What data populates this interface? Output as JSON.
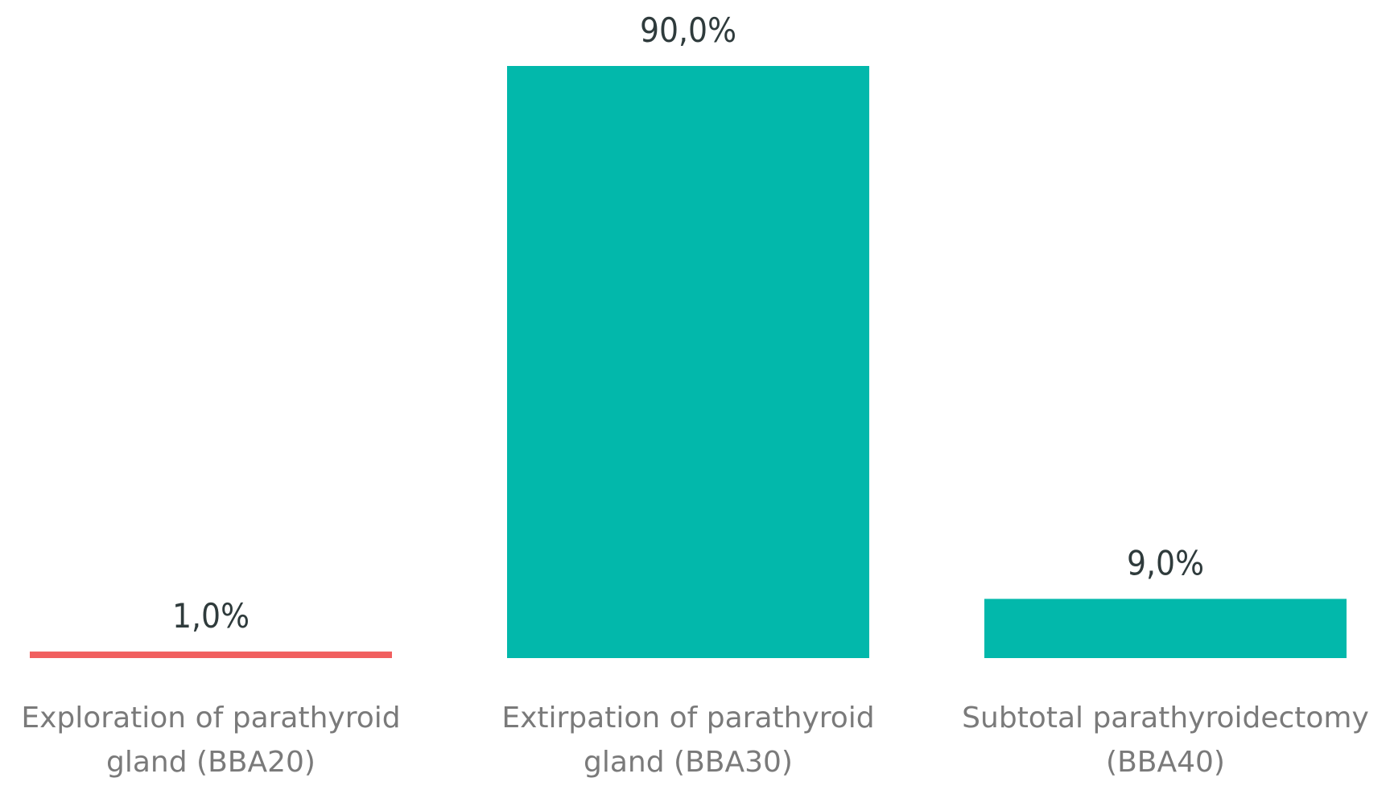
{
  "chart_data": {
    "type": "bar",
    "categories": [
      [
        "Exploration of parathyroid",
        "gland (BBA20)"
      ],
      [
        "Extirpation of parathyroid",
        "gland (BBA30)"
      ],
      [
        "Subtotal parathyroidectomy",
        "(BBA40)"
      ]
    ],
    "values": [
      1.0,
      90.0,
      9.0
    ],
    "data_labels": [
      "1,0%",
      "90,0%",
      "9,0%"
    ],
    "colors": [
      "#f15f5f",
      "#02b8ab",
      "#02b8ab"
    ],
    "ylim": [
      0,
      90
    ],
    "grid": false,
    "legend": "none"
  }
}
